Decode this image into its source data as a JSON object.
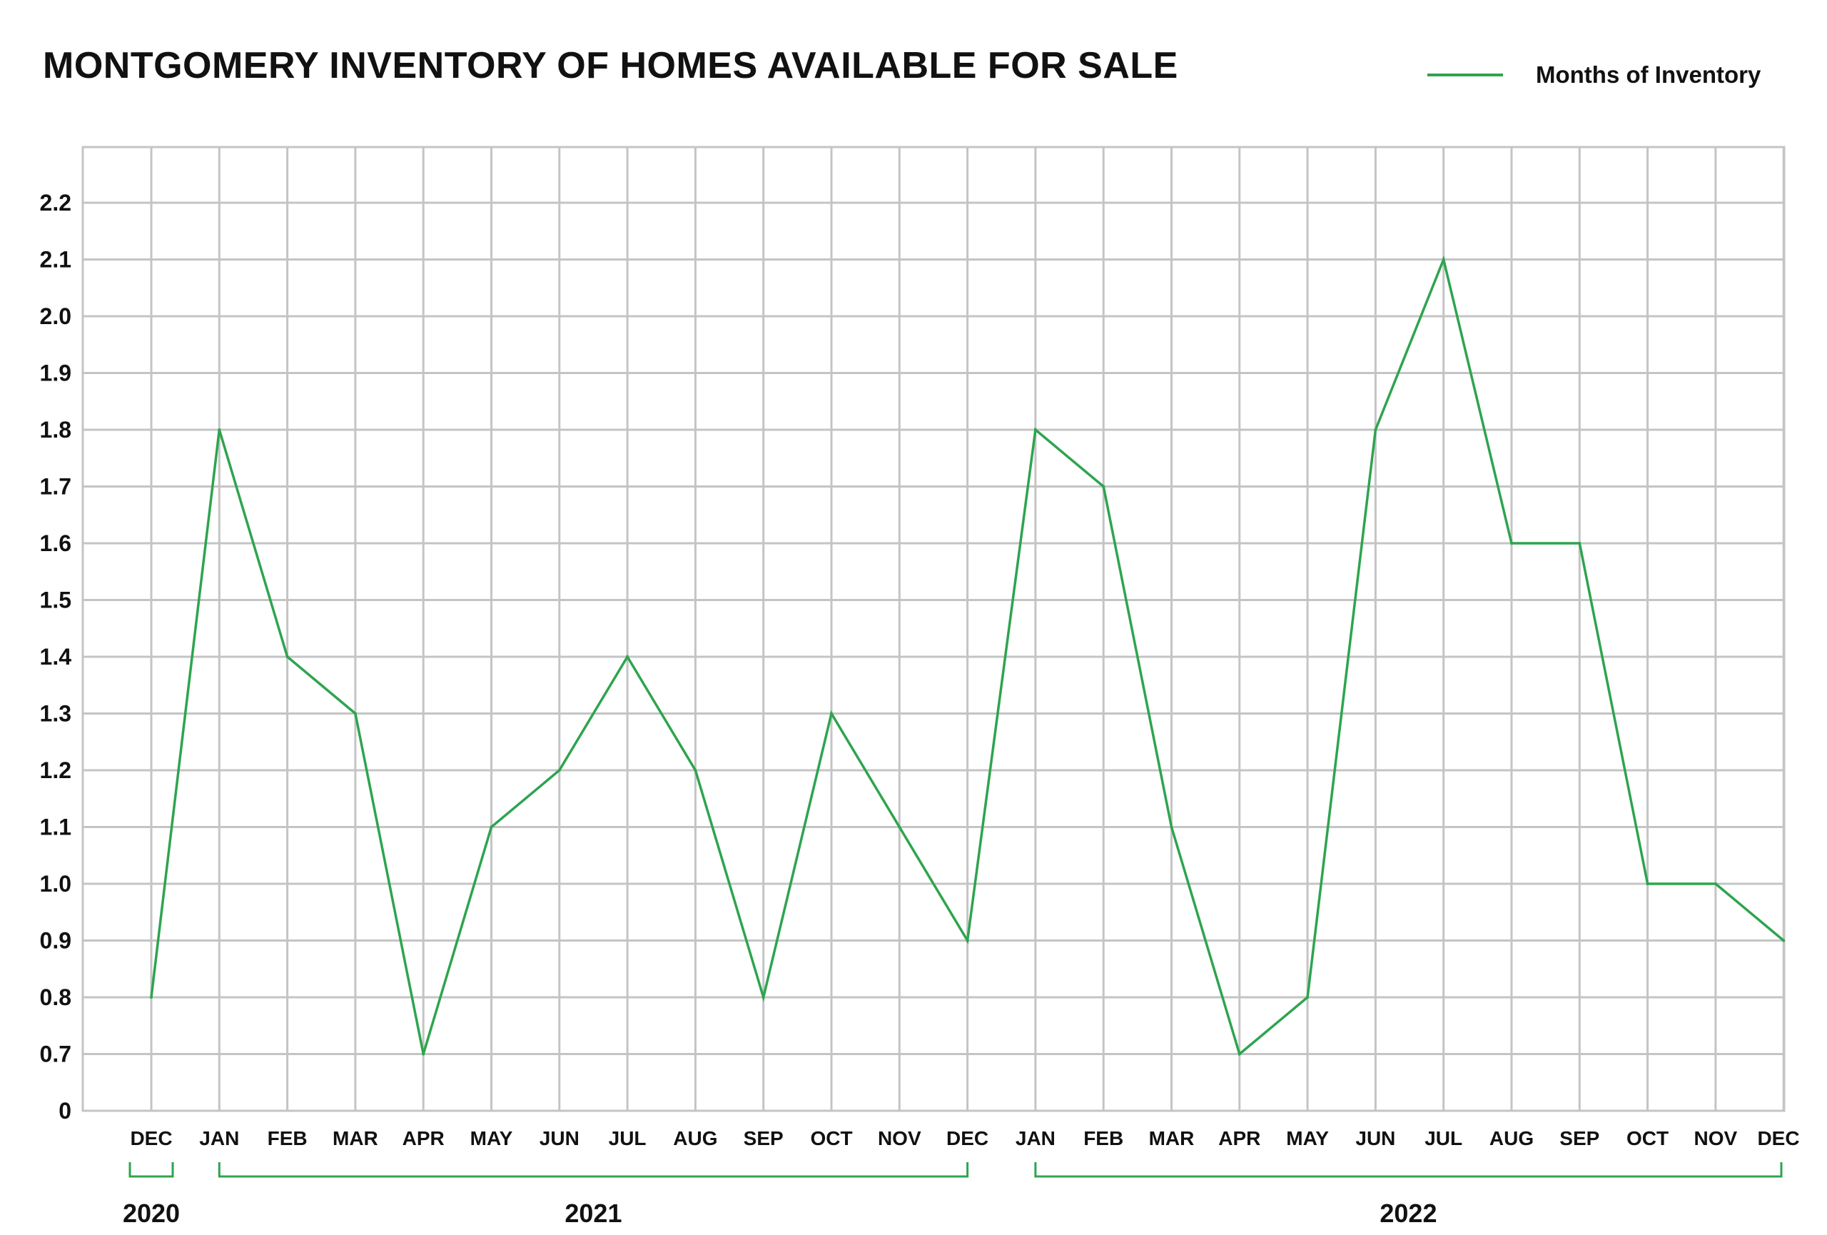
{
  "chart_data": {
    "type": "line",
    "title": "MONTGOMERY INVENTORY OF HOMES AVAILABLE FOR SALE",
    "xlabel": "",
    "ylabel": "",
    "categories": [
      "DEC",
      "JAN",
      "FEB",
      "MAR",
      "APR",
      "MAY",
      "JUN",
      "JUL",
      "AUG",
      "SEP",
      "OCT",
      "NOV",
      "DEC",
      "JAN",
      "FEB",
      "MAR",
      "APR",
      "MAY",
      "JUN",
      "JUL",
      "AUG",
      "SEP",
      "OCT",
      "NOV",
      "DEC"
    ],
    "year_groups": [
      {
        "label": "2020",
        "start": 0,
        "end": 0
      },
      {
        "label": "2021",
        "start": 1,
        "end": 12
      },
      {
        "label": "2022",
        "start": 13,
        "end": 24
      }
    ],
    "series": [
      {
        "name": "Months of Inventory",
        "color": "#2ea44f",
        "values": [
          0.8,
          1.8,
          1.4,
          1.3,
          0.7,
          1.1,
          1.2,
          1.4,
          1.2,
          0.8,
          1.3,
          1.1,
          0.9,
          1.8,
          1.7,
          1.1,
          0.7,
          0.8,
          1.8,
          2.1,
          1.6,
          1.6,
          1.0,
          1.0,
          0.9
        ]
      }
    ],
    "yticks": [
      "0",
      "0.7",
      "0.8",
      "0.9",
      "1.0",
      "1.1",
      "1.2",
      "1.3",
      "1.4",
      "1.5",
      "1.6",
      "1.7",
      "1.8",
      "1.9",
      "2.0",
      "2.1",
      "2.2"
    ],
    "ylim": [
      0.6,
      2.3
    ],
    "axis_break": true,
    "grid": true,
    "legend_position": "top-right",
    "colors": {
      "line": "#2ea44f",
      "grid": "#c4c4c4",
      "text": "#111111"
    }
  }
}
